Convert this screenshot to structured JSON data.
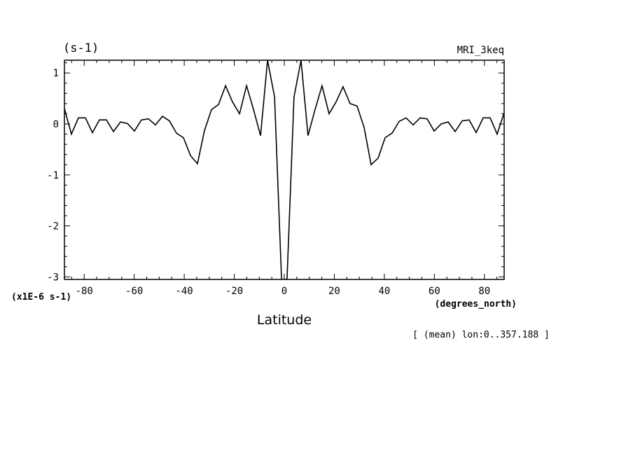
{
  "chart_data": {
    "type": "line",
    "title": "",
    "model_label": "MRI_3keq",
    "unit_label": "(s-1)",
    "scale_label": "(x1E-6 s-1)",
    "xlabel": "Latitude",
    "x_unit_label": "(degrees_north)",
    "footnote": "[ (mean) lon:0..357.188 ]",
    "xlim": [
      -87.9,
      87.9
    ],
    "ylim": [
      -3.05,
      1.25
    ],
    "x_ticks": [
      -80,
      -60,
      -40,
      -20,
      0,
      20,
      40,
      60,
      80
    ],
    "x_tick_labels": [
      "-80",
      "-60",
      "-40",
      "-20",
      "0",
      "20",
      "40",
      "60",
      "80"
    ],
    "y_ticks": [
      1,
      0,
      -1,
      -2,
      -3
    ],
    "y_tick_labels": [
      "1",
      "0",
      "-1",
      "-2",
      "-3"
    ],
    "grid": false,
    "series": [
      {
        "x": [
          -87.9,
          -85.1,
          -82.3,
          -79.5,
          -76.7,
          -73.9,
          -71.1,
          -68.3,
          -65.5,
          -62.7,
          -59.9,
          -57.1,
          -54.3,
          -51.5,
          -48.7,
          -45.9,
          -43.1,
          -40.3,
          -37.5,
          -34.7,
          -31.9,
          -29.1,
          -26.3,
          -23.5,
          -20.7,
          -17.9,
          -15.1,
          -12.3,
          -9.5,
          -6.7,
          -3.9,
          -1.1,
          1.1,
          3.9,
          6.7,
          9.5,
          12.3,
          15.1,
          17.9,
          20.7,
          23.5,
          26.3,
          29.1,
          31.9,
          34.7,
          37.5,
          40.3,
          43.1,
          45.9,
          48.7,
          51.5,
          54.3,
          57.1,
          59.9,
          62.7,
          65.5,
          68.3,
          71.1,
          73.9,
          76.7,
          79.5,
          82.3,
          85.1,
          87.9
        ],
        "y": [
          0.3,
          -0.2,
          0.12,
          0.12,
          -0.17,
          0.08,
          0.08,
          -0.15,
          0.04,
          0.01,
          -0.14,
          0.08,
          0.1,
          -0.02,
          0.15,
          0.06,
          -0.18,
          -0.27,
          -0.62,
          -0.78,
          -0.13,
          0.28,
          0.38,
          0.75,
          0.43,
          0.2,
          0.75,
          0.28,
          -0.23,
          1.25,
          0.53,
          -3.05,
          -3.05,
          0.53,
          1.25,
          -0.23,
          0.28,
          0.75,
          0.2,
          0.43,
          0.73,
          0.4,
          0.35,
          -0.07,
          -0.8,
          -0.67,
          -0.27,
          -0.18,
          0.05,
          0.12,
          -0.02,
          0.12,
          0.1,
          -0.14,
          0.0,
          0.04,
          -0.15,
          0.06,
          0.08,
          -0.17,
          0.12,
          0.12,
          -0.2,
          0.22
        ]
      }
    ]
  }
}
